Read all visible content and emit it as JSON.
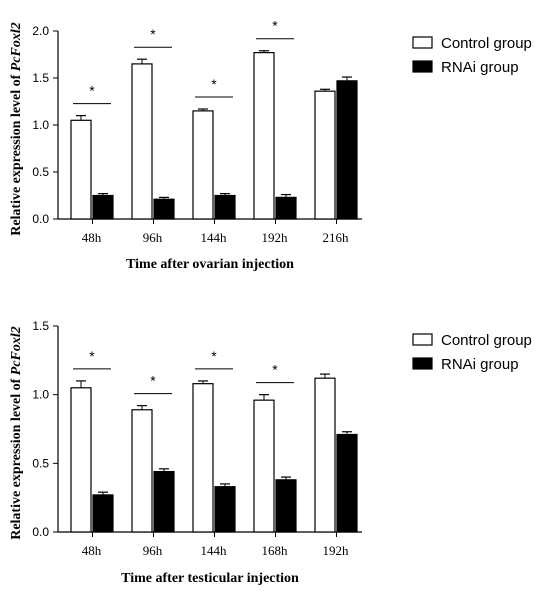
{
  "chart_data": [
    {
      "type": "bar",
      "categories": [
        "48h",
        "96h",
        "144h",
        "192h",
        "216h"
      ],
      "series": [
        {
          "name": "Control group",
          "values": [
            1.05,
            1.65,
            1.15,
            1.77,
            1.36
          ],
          "errors": [
            0.05,
            0.05,
            0.02,
            0.02,
            0.02
          ]
        },
        {
          "name": "RNAi group",
          "values": [
            0.25,
            0.21,
            0.25,
            0.23,
            1.47
          ],
          "errors": [
            0.02,
            0.02,
            0.02,
            0.03,
            0.04
          ]
        }
      ],
      "significance": [
        "*",
        "*",
        "*",
        "*",
        ""
      ],
      "xlabel": "Time after ovarian injection",
      "ylabel_prefix": "Relative expression level of ",
      "ylabel_gene": "PcFoxl2",
      "ylim": [
        0,
        2.0
      ],
      "yticks": [
        "0.0",
        "0.5",
        "1.0",
        "1.5",
        "2.0"
      ],
      "legend": {
        "position": "top-right"
      },
      "colors": {
        "control_fill": "#ffffff",
        "rnai_fill": "#000000",
        "stroke": "#000000"
      }
    },
    {
      "type": "bar",
      "categories": [
        "48h",
        "96h",
        "144h",
        "168h",
        "192h"
      ],
      "series": [
        {
          "name": "Control group",
          "values": [
            1.05,
            0.89,
            1.08,
            0.96,
            1.12
          ],
          "errors": [
            0.05,
            0.03,
            0.02,
            0.04,
            0.03
          ]
        },
        {
          "name": "RNAi group",
          "values": [
            0.27,
            0.44,
            0.33,
            0.38,
            0.71
          ],
          "errors": [
            0.02,
            0.02,
            0.02,
            0.02,
            0.02
          ]
        }
      ],
      "significance": [
        "*",
        "*",
        "*",
        "*",
        ""
      ],
      "xlabel": "Time after testicular injection",
      "ylabel_prefix": "Relative expression level of ",
      "ylabel_gene": "PcFoxl2",
      "ylim": [
        0,
        1.5
      ],
      "yticks": [
        "0.0",
        "0.5",
        "1.0",
        "1.5"
      ],
      "legend": {
        "position": "top-right"
      },
      "colors": {
        "control_fill": "#ffffff",
        "rnai_fill": "#000000",
        "stroke": "#000000"
      }
    }
  ]
}
